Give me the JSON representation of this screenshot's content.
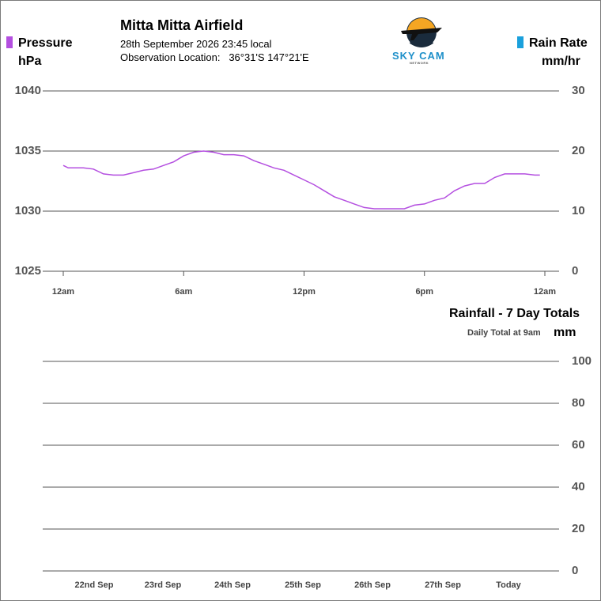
{
  "header": {
    "title": "Mitta Mitta Airfield",
    "datetime": "28th September 2026  23:45 local",
    "location_label": "Observation Location:",
    "location_value": "36°31'S 147°21'E"
  },
  "logo": {
    "text_main": "SKY CAM",
    "text_sub": "NETWORK",
    "sun_color": "#f5a623",
    "plane_color": "#1a1a1a"
  },
  "legend": {
    "pressure": {
      "label": "Pressure",
      "unit": "hPa",
      "color": "#b44fe0"
    },
    "rain_rate": {
      "label": "Rain Rate",
      "unit": "mm/hr",
      "color": "#1aa0dc"
    }
  },
  "chart_data": [
    {
      "type": "line",
      "name": "pressure-chart",
      "x_tick_labels": [
        "12am",
        "6am",
        "12pm",
        "6pm",
        "12am"
      ],
      "xlim_hours": [
        0,
        24
      ],
      "ylabel": "hPa",
      "ylabel_right": "mm/hr",
      "y_ticks_left": [
        1040,
        1035,
        1030,
        1025
      ],
      "y_ticks_right": [
        30,
        20,
        10,
        0
      ],
      "ylim": [
        1025,
        1040
      ],
      "ylim_right": [
        0,
        30
      ],
      "grid": true,
      "series": [
        {
          "name": "Pressure",
          "color": "#b44fe0",
          "x": [
            0,
            0.25,
            0.5,
            1,
            1.5,
            2,
            2.5,
            3,
            3.5,
            4,
            4.5,
            5,
            5.5,
            6,
            6.5,
            7,
            7.5,
            8,
            8.5,
            9,
            9.5,
            10,
            10.5,
            11,
            11.5,
            12,
            12.5,
            13,
            13.5,
            14,
            14.5,
            15,
            15.5,
            16,
            16.5,
            17,
            17.5,
            18,
            18.5,
            19,
            19.5,
            20,
            20.5,
            21,
            21.5,
            22,
            22.5,
            23,
            23.5,
            23.75
          ],
          "values": [
            1033.8,
            1033.6,
            1033.6,
            1033.6,
            1033.5,
            1033.1,
            1033.0,
            1033.0,
            1033.2,
            1033.4,
            1033.5,
            1033.8,
            1034.1,
            1034.6,
            1034.9,
            1035.0,
            1034.9,
            1034.7,
            1034.7,
            1034.6,
            1034.2,
            1033.9,
            1033.6,
            1033.4,
            1033.0,
            1032.6,
            1032.2,
            1031.7,
            1031.2,
            1030.9,
            1030.6,
            1030.3,
            1030.2,
            1030.2,
            1030.2,
            1030.2,
            1030.5,
            1030.6,
            1030.9,
            1031.1,
            1031.7,
            1032.1,
            1032.3,
            1032.3,
            1032.8,
            1033.1,
            1033.1,
            1033.1,
            1033.0,
            1033.0
          ]
        },
        {
          "name": "Rain Rate",
          "color": "#1aa0dc",
          "x": [
            0,
            23.75
          ],
          "values": [
            0,
            0
          ]
        }
      ]
    },
    {
      "type": "bar",
      "name": "rainfall-chart",
      "title": "Rainfall - 7 Day Totals",
      "subtitle": "Daily Total at 9am",
      "ylabel": "mm",
      "categories": [
        "22nd Sep",
        "23rd Sep",
        "24th Sep",
        "25th Sep",
        "26th Sep",
        "27th Sep",
        "Today"
      ],
      "values": [
        0,
        0,
        0,
        0,
        0,
        0,
        0
      ],
      "y_ticks": [
        100,
        80,
        60,
        40,
        20,
        0
      ],
      "ylim": [
        0,
        100
      ],
      "grid": true
    }
  ]
}
